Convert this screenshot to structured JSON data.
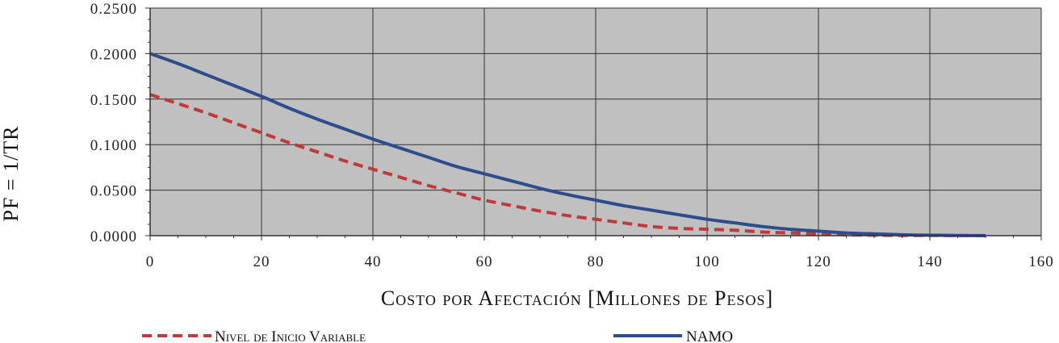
{
  "chart_data": {
    "type": "line",
    "title": "",
    "xlabel": "Costo por Afectación [Millones de Pesos]",
    "ylabel": "PF = 1/TR",
    "xlim": [
      0,
      160
    ],
    "ylim": [
      0,
      0.25
    ],
    "xticks": [
      0,
      20,
      40,
      60,
      80,
      100,
      120,
      140,
      160
    ],
    "yticks": [
      "0.0000",
      "0.0500",
      "0.1000",
      "0.1500",
      "0.2000",
      "0.2500"
    ],
    "grid": true,
    "legend_position": "bottom",
    "plot_background": "#c0c0c0",
    "series": [
      {
        "name": "Nivel de Inicio Variable",
        "color": "#c0393b",
        "style": "dashed",
        "x": [
          0,
          5,
          10,
          15,
          20,
          25,
          30,
          35,
          40,
          45,
          50,
          55,
          60,
          65,
          70,
          75,
          80,
          85,
          90,
          95,
          100,
          105,
          110,
          115,
          120,
          125,
          130,
          135,
          140,
          145,
          150
        ],
        "y": [
          0.155,
          0.145,
          0.135,
          0.124,
          0.113,
          0.102,
          0.092,
          0.082,
          0.073,
          0.064,
          0.055,
          0.047,
          0.039,
          0.033,
          0.027,
          0.022,
          0.018,
          0.014,
          0.01,
          0.008,
          0.007,
          0.006,
          0.004,
          0.003,
          0.002,
          0.001,
          0.0005,
          0.0003,
          0.0002,
          0.0001,
          0.0
        ]
      },
      {
        "name": "NAMO",
        "color": "#2e4d8c",
        "style": "solid",
        "x": [
          0,
          5,
          10,
          15,
          20,
          25,
          30,
          35,
          40,
          45,
          50,
          55,
          60,
          65,
          70,
          75,
          80,
          85,
          90,
          95,
          100,
          105,
          110,
          115,
          120,
          125,
          130,
          135,
          140,
          145,
          150
        ],
        "y": [
          0.2,
          0.189,
          0.177,
          0.165,
          0.153,
          0.14,
          0.128,
          0.117,
          0.106,
          0.096,
          0.086,
          0.076,
          0.068,
          0.06,
          0.052,
          0.045,
          0.039,
          0.033,
          0.028,
          0.023,
          0.018,
          0.014,
          0.01,
          0.007,
          0.005,
          0.003,
          0.002,
          0.001,
          0.0005,
          0.0002,
          0.0001
        ]
      }
    ]
  }
}
